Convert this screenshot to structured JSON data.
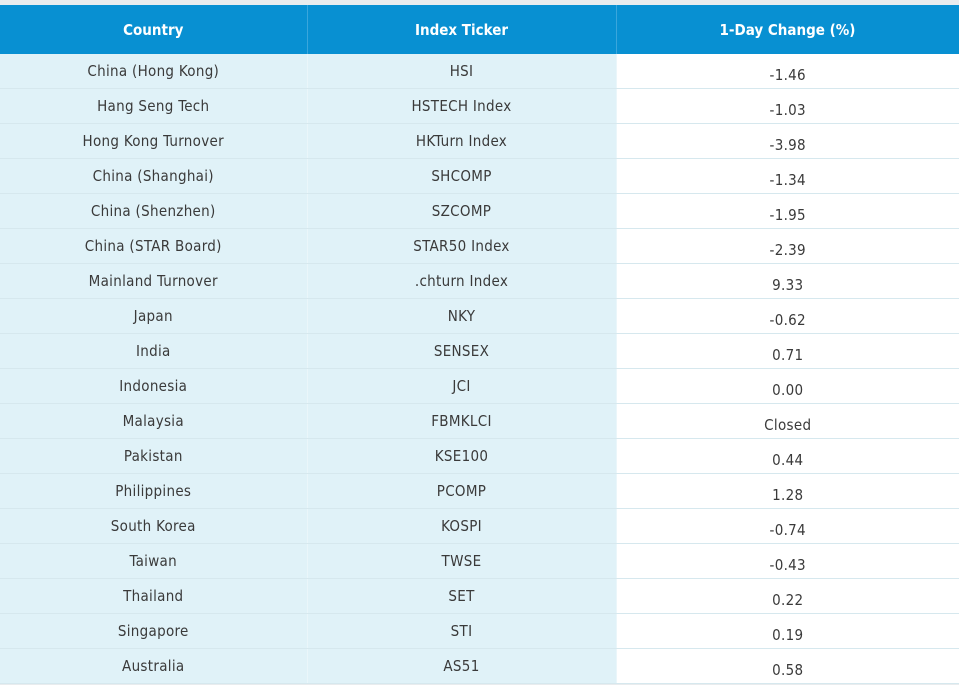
{
  "table": {
    "headers": [
      "Country",
      "Index Ticker",
      "1-Day Change (%)"
    ],
    "rows": [
      [
        "China (Hong Kong)",
        "HSI",
        "-1.46"
      ],
      [
        "Hang Seng Tech",
        "HSTECH Index",
        "-1.03"
      ],
      [
        "Hong Kong Turnover",
        "HKTurn Index",
        "-3.98"
      ],
      [
        "China (Shanghai)",
        "SHCOMP",
        "-1.34"
      ],
      [
        "China (Shenzhen)",
        "SZCOMP",
        "-1.95"
      ],
      [
        "China (STAR Board)",
        "STAR50 Index",
        "-2.39"
      ],
      [
        "Mainland Turnover",
        ".chturn Index",
        "9.33"
      ],
      [
        "Japan",
        "NKY",
        "-0.62"
      ],
      [
        "India",
        "SENSEX",
        "0.71"
      ],
      [
        "Indonesia",
        "JCI",
        "0.00"
      ],
      [
        "Malaysia",
        "FBMKLCI",
        "Closed"
      ],
      [
        "Pakistan",
        "KSE100",
        "0.44"
      ],
      [
        "Philippines",
        "PCOMP",
        "1.28"
      ],
      [
        "South Korea",
        "KOSPI",
        "-0.74"
      ],
      [
        "Taiwan",
        "TWSE",
        "-0.43"
      ],
      [
        "Thailand",
        "SET",
        "0.22"
      ],
      [
        "Singapore",
        "STI",
        "0.19"
      ],
      [
        "Australia",
        "AS51",
        "0.58"
      ]
    ]
  },
  "colors": {
    "header_bg": "#0890d2",
    "label_cell_bg": "#e0f2f8",
    "value_cell_bg": "#ffffff"
  }
}
